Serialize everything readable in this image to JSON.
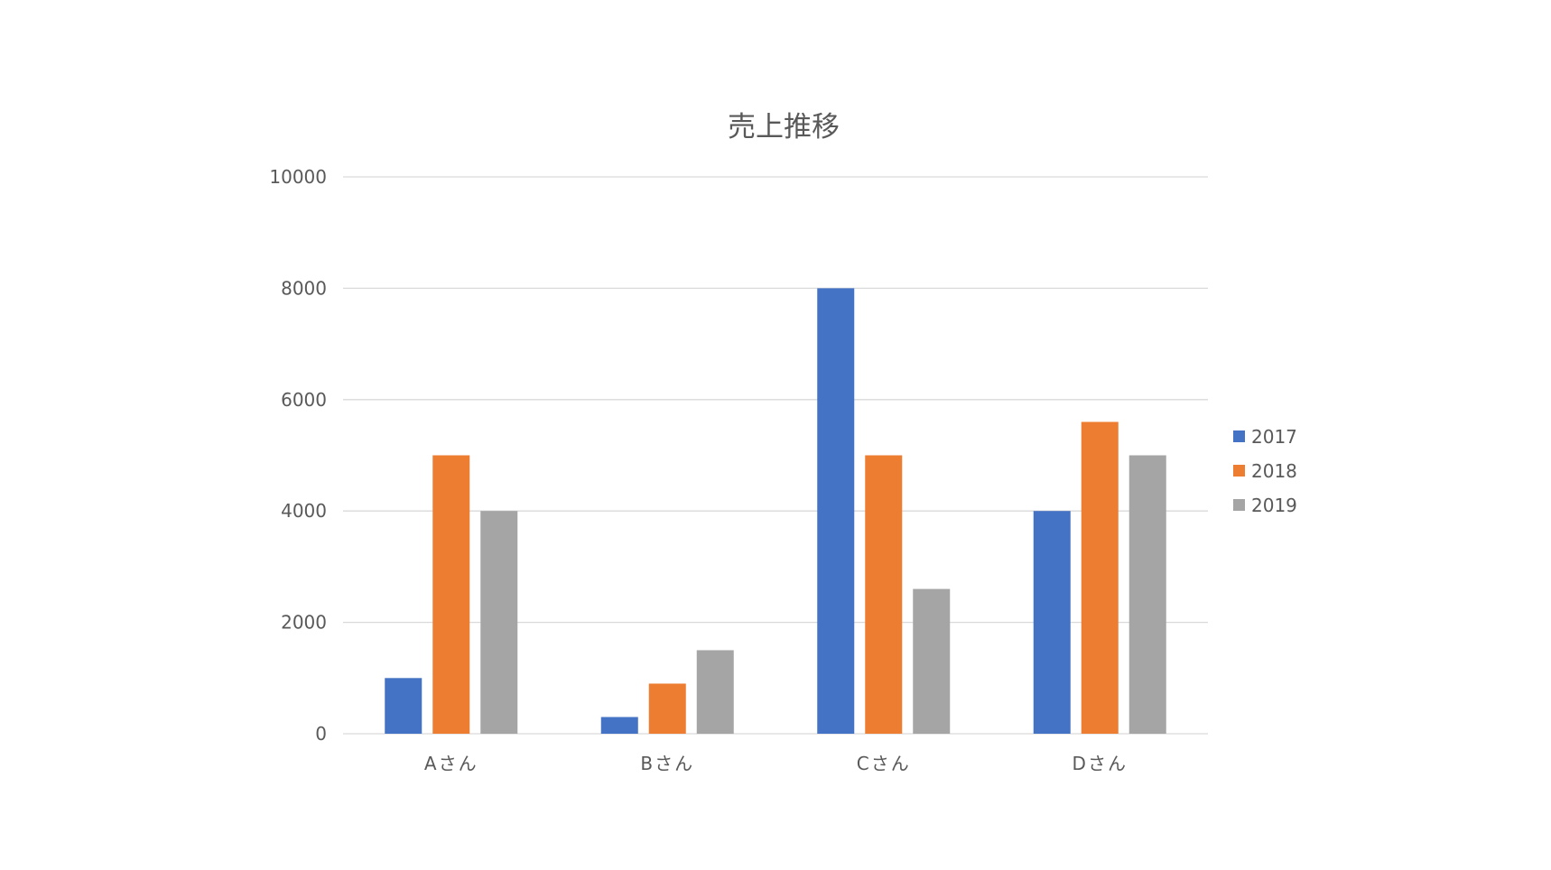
{
  "chart_data": {
    "type": "bar",
    "title": "売上推移",
    "categories": [
      "Aさん",
      "Bさん",
      "Cさん",
      "Dさん"
    ],
    "series": [
      {
        "name": "2017",
        "values": [
          1000,
          300,
          8000,
          4000
        ],
        "color": "#4472C4"
      },
      {
        "name": "2018",
        "values": [
          5000,
          900,
          5000,
          5600
        ],
        "color": "#ED7D31"
      },
      {
        "name": "2019",
        "values": [
          4000,
          1500,
          2600,
          5000
        ],
        "color": "#A5A5A5"
      }
    ],
    "ylim": [
      0,
      10000
    ],
    "yticks": [
      0,
      2000,
      4000,
      6000,
      8000,
      10000
    ],
    "xlabel": "",
    "ylabel": "",
    "grid": true,
    "legend_position": "right"
  }
}
